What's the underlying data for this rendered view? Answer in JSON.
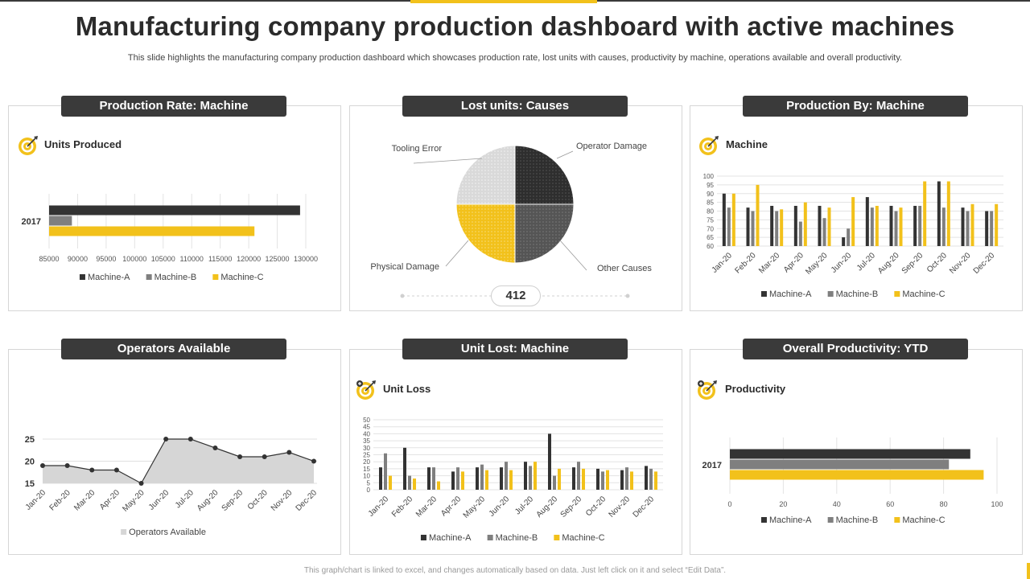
{
  "header": {
    "title": "Manufacturing company production dashboard with active machines",
    "subtitle": "This slide highlights the manufacturing company production dashboard which showcases production rate, lost units with causes, productivity by machine, operations available and overall productivity."
  },
  "footer": {
    "note": "This graph/chart is linked to excel, and changes automatically based on data. Just left click on it and select “Edit Data”."
  },
  "colors": {
    "machine_a": "#333333",
    "machine_b": "#7f7f7f",
    "machine_c": "#f2c11b",
    "area": "#d6d6d6",
    "dark_panel": "#3a3a3a"
  },
  "panels": {
    "production_rate": {
      "title": "Production Rate: Machine",
      "subtitle": "Units Produced",
      "icon": "target-icon"
    },
    "lost_units": {
      "title": "Lost units: Causes",
      "counter": "412"
    },
    "production_by": {
      "title": "Production By: Machine",
      "subtitle": "Machine",
      "icon": "target-icon"
    },
    "operators": {
      "title": "Operators Available"
    },
    "unit_lost": {
      "title": "Unit Lost: Machine",
      "subtitle": "Unit Loss",
      "icon": "target-icon"
    },
    "productivity": {
      "title": "Overall Productivity: YTD",
      "subtitle": "Productivity",
      "icon": "target-icon"
    }
  },
  "chart_data": [
    {
      "id": "production_rate",
      "type": "bar",
      "orientation": "horizontal",
      "categories": [
        "2017"
      ],
      "series": [
        {
          "name": "Machine-A",
          "values": [
            129000
          ]
        },
        {
          "name": "Machine-B",
          "values": [
            89000
          ]
        },
        {
          "name": "Machine-C",
          "values": [
            121000
          ]
        }
      ],
      "xlim": [
        85000,
        130000
      ],
      "xticks": [
        "85000",
        "90000",
        "95000",
        "100000",
        "105000",
        "110000",
        "115000",
        "120000",
        "125000",
        "130000"
      ],
      "legend": [
        "Machine-A",
        "Machine-B",
        "Machine-C"
      ]
    },
    {
      "id": "lost_units",
      "type": "pie",
      "labels": [
        "Operator Damage",
        "Other Causes",
        "Physical Damage",
        "Tooling Error"
      ],
      "values": [
        103,
        103,
        103,
        103
      ]
    },
    {
      "id": "production_by",
      "type": "bar",
      "categories": [
        "Jan-20",
        "Feb-20",
        "Mar-20",
        "Apr-20",
        "May-20",
        "Jun-20",
        "Jul-20",
        "Aug-20",
        "Sep-20",
        "Oct-20",
        "Nov-20",
        "Dec-20"
      ],
      "series": [
        {
          "name": "Machine-A",
          "values": [
            90,
            82,
            83,
            83,
            83,
            65,
            88,
            83,
            83,
            97,
            82,
            80
          ]
        },
        {
          "name": "Machine-B",
          "values": [
            82,
            80,
            80,
            74,
            76,
            70,
            82,
            80,
            83,
            82,
            80,
            80
          ]
        },
        {
          "name": "Machine-C",
          "values": [
            90,
            95,
            81,
            85,
            82,
            88,
            83,
            82,
            97,
            97,
            84,
            84
          ]
        }
      ],
      "ylim": [
        60,
        100
      ],
      "yticks": [
        "60",
        "65",
        "70",
        "75",
        "80",
        "85",
        "90",
        "95",
        "100"
      ],
      "legend": [
        "Machine-A",
        "Machine-B",
        "Machine-C"
      ]
    },
    {
      "id": "operators",
      "type": "area",
      "categories": [
        "Jan-20",
        "Feb-20",
        "Mar-20",
        "Apr-20",
        "May-20",
        "Jun-20",
        "Jul-20",
        "Aug-20",
        "Sep-20",
        "Oct-20",
        "Nov-20",
        "Dec-20"
      ],
      "series": [
        {
          "name": "Operators Available",
          "values": [
            19,
            19,
            18,
            18,
            15,
            25,
            25,
            23,
            21,
            21,
            22,
            20
          ]
        }
      ],
      "ylim": [
        15,
        25
      ],
      "yticks": [
        "15",
        "20",
        "25"
      ],
      "legend": [
        "Operators Available"
      ]
    },
    {
      "id": "unit_lost",
      "type": "bar",
      "categories": [
        "Jan-20",
        "Feb-20",
        "Mar-20",
        "Apr-20",
        "May-20",
        "Jun-20",
        "Jul-20",
        "Aug-20",
        "Sep-20",
        "Oct-20",
        "Nov-20",
        "Dec-20"
      ],
      "series": [
        {
          "name": "Machine-A",
          "values": [
            16,
            30,
            16,
            13,
            16,
            16,
            20,
            40,
            16,
            15,
            14,
            17
          ]
        },
        {
          "name": "Machine-B",
          "values": [
            26,
            10,
            16,
            16,
            18,
            20,
            17,
            10,
            20,
            13,
            16,
            15
          ]
        },
        {
          "name": "Machine-C",
          "values": [
            10,
            8,
            6,
            13,
            14,
            14,
            20,
            15,
            15,
            14,
            13,
            13
          ]
        }
      ],
      "ylim": [
        0,
        50
      ],
      "yticks": [
        "0",
        "5",
        "10",
        "15",
        "20",
        "25",
        "30",
        "35",
        "40",
        "45",
        "50"
      ],
      "legend": [
        "Machine-A",
        "Machine-B",
        "Machine-C"
      ]
    },
    {
      "id": "productivity",
      "type": "bar",
      "orientation": "horizontal",
      "categories": [
        "2017"
      ],
      "series": [
        {
          "name": "Machine-A",
          "values": [
            90
          ]
        },
        {
          "name": "Machine-B",
          "values": [
            82
          ]
        },
        {
          "name": "Machine-C",
          "values": [
            95
          ]
        }
      ],
      "xlim": [
        0,
        100
      ],
      "xticks": [
        "0",
        "20",
        "40",
        "60",
        "80",
        "100"
      ],
      "legend": [
        "Machine-A",
        "Machine-B",
        "Machine-C"
      ]
    }
  ]
}
